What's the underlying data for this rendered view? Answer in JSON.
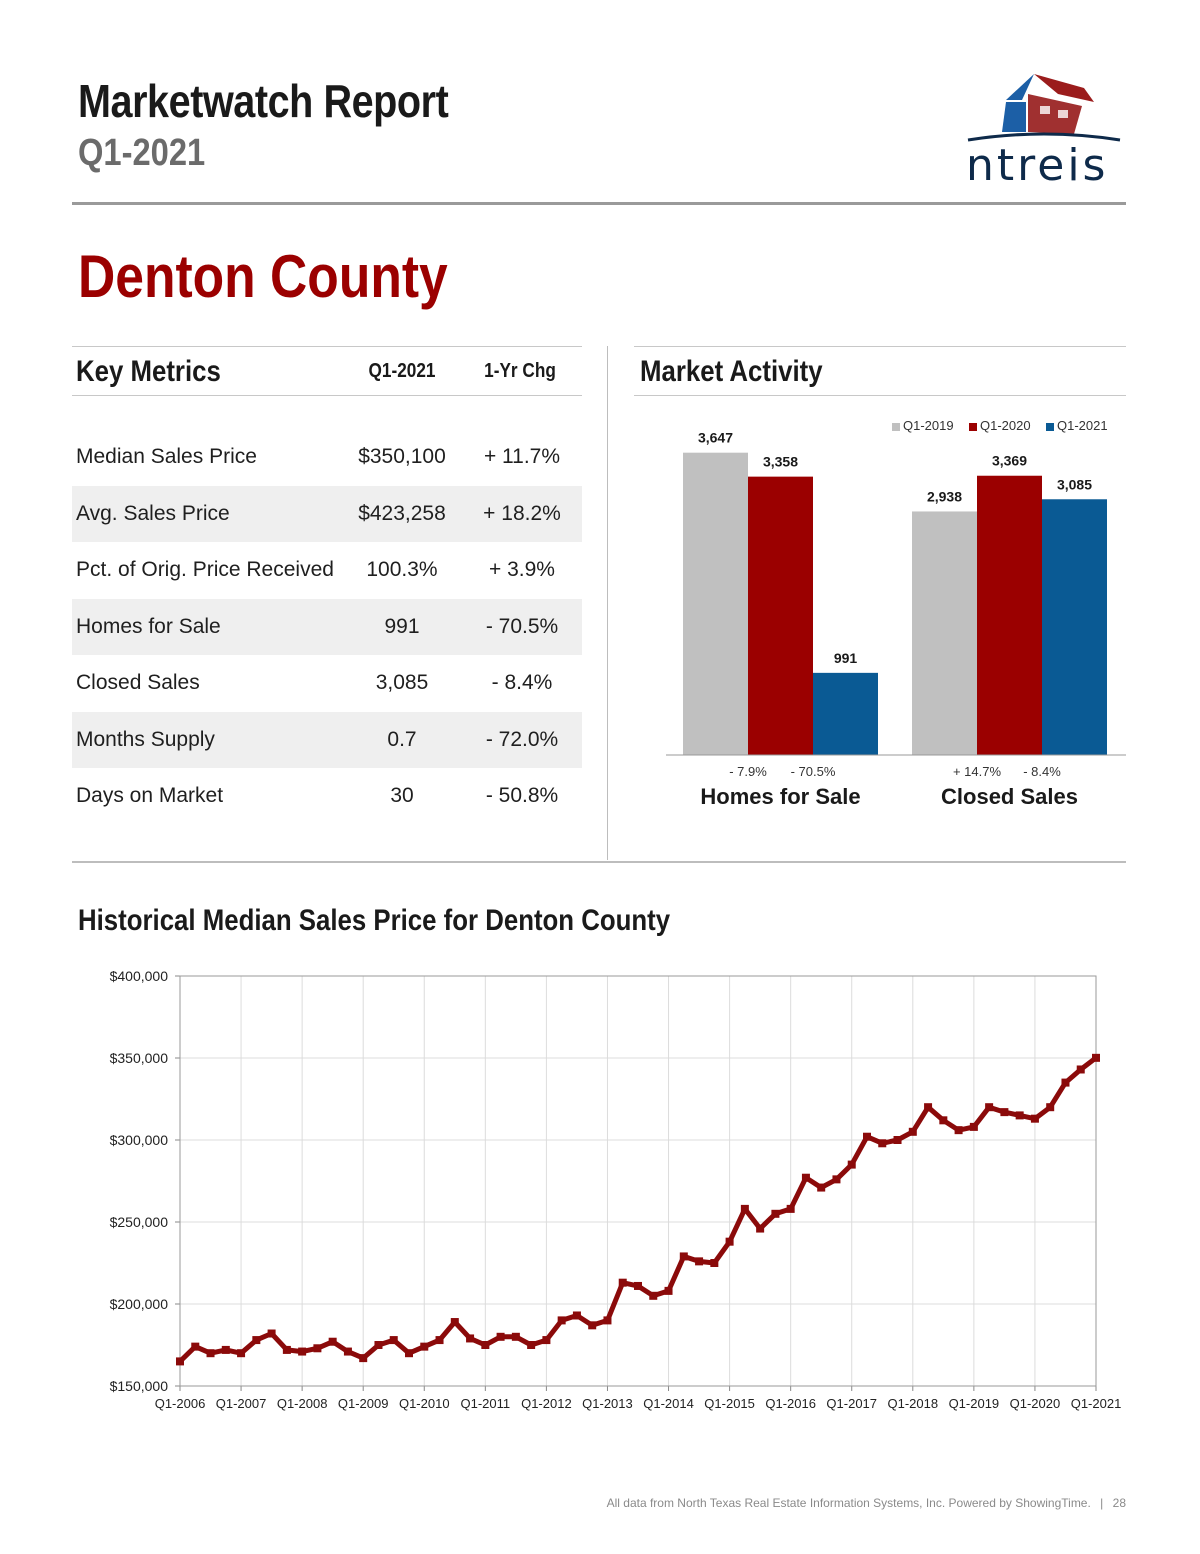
{
  "header": {
    "title": "Marketwatch Report",
    "period": "Q1-2021",
    "logo_text": "ntreis",
    "county": "Denton County"
  },
  "key_metrics": {
    "title": "Key Metrics",
    "col_value": "Q1-2021",
    "col_change": "1-Yr Chg",
    "rows": [
      {
        "label": "Median Sales Price",
        "value": "$350,100",
        "change": "+ 11.7%"
      },
      {
        "label": "Avg. Sales Price",
        "value": "$423,258",
        "change": "+ 18.2%"
      },
      {
        "label": "Pct. of Orig. Price Received",
        "value": "100.3%",
        "change": "+ 3.9%"
      },
      {
        "label": "Homes for Sale",
        "value": "991",
        "change": "- 70.5%"
      },
      {
        "label": "Closed Sales",
        "value": "3,085",
        "change": "- 8.4%"
      },
      {
        "label": "Months Supply",
        "value": "0.7",
        "change": "- 72.0%"
      },
      {
        "label": "Days on Market",
        "value": "30",
        "change": "- 50.8%"
      }
    ]
  },
  "market_activity": {
    "title": "Market Activity"
  },
  "historical": {
    "title": "Historical Median Sales Price for Denton County"
  },
  "footer": {
    "text": "All data from North Texas Real Estate Information Systems, Inc. Powered by ShowingTime.",
    "page": "28"
  },
  "colors": {
    "brand_red": "#9b0000",
    "gray": "#c0c0c0",
    "blue": "#0a5a94",
    "line": "#8b0a0a"
  },
  "chart_data": [
    {
      "type": "bar",
      "categories": [
        "Homes for Sale",
        "Closed Sales"
      ],
      "series": [
        {
          "name": "Q1-2019",
          "values": [
            3647,
            2938
          ],
          "labels": [
            "3,647",
            "2,938"
          ],
          "color": "#c0c0c0"
        },
        {
          "name": "Q1-2020",
          "values": [
            3358,
            3369
          ],
          "labels": [
            "3,358",
            "3,369"
          ],
          "color": "#9b0000"
        },
        {
          "name": "Q1-2021",
          "values": [
            991,
            3085
          ],
          "labels": [
            "991",
            "3,085"
          ],
          "color": "#0a5a94"
        }
      ],
      "changes": [
        [
          "- 7.9%",
          "- 70.5%"
        ],
        [
          "+ 14.7%",
          "- 8.4%"
        ]
      ],
      "ylim": [
        0,
        3800
      ],
      "legend": "top-right"
    },
    {
      "type": "line",
      "ylim": [
        150000,
        400000
      ],
      "ytick_values": [
        150000,
        200000,
        250000,
        300000,
        350000,
        400000
      ],
      "ytick_labels": [
        "$150,000",
        "$200,000",
        "$250,000",
        "$300,000",
        "$350,000",
        "$400,000"
      ],
      "xtick_labels": [
        "Q1-2006",
        "Q1-2007",
        "Q1-2008",
        "Q1-2009",
        "Q1-2010",
        "Q1-2011",
        "Q1-2012",
        "Q1-2013",
        "Q1-2014",
        "Q1-2015",
        "Q1-2016",
        "Q1-2017",
        "Q1-2018",
        "Q1-2019",
        "Q1-2020",
        "Q1-2021"
      ],
      "grid": true,
      "values": [
        165000,
        174000,
        170000,
        172000,
        170000,
        178000,
        182000,
        172000,
        171000,
        173000,
        177000,
        171000,
        167000,
        175000,
        178000,
        170000,
        174000,
        178000,
        189000,
        179000,
        175000,
        180000,
        180000,
        175000,
        178000,
        190000,
        193000,
        187000,
        190000,
        213000,
        211000,
        205000,
        208000,
        229000,
        226000,
        225000,
        238000,
        258000,
        246000,
        255000,
        258000,
        277000,
        271000,
        276000,
        285000,
        302000,
        298000,
        300000,
        305000,
        320000,
        312000,
        306000,
        308000,
        320000,
        317000,
        315000,
        313000,
        320000,
        335000,
        343000,
        350100
      ]
    }
  ]
}
